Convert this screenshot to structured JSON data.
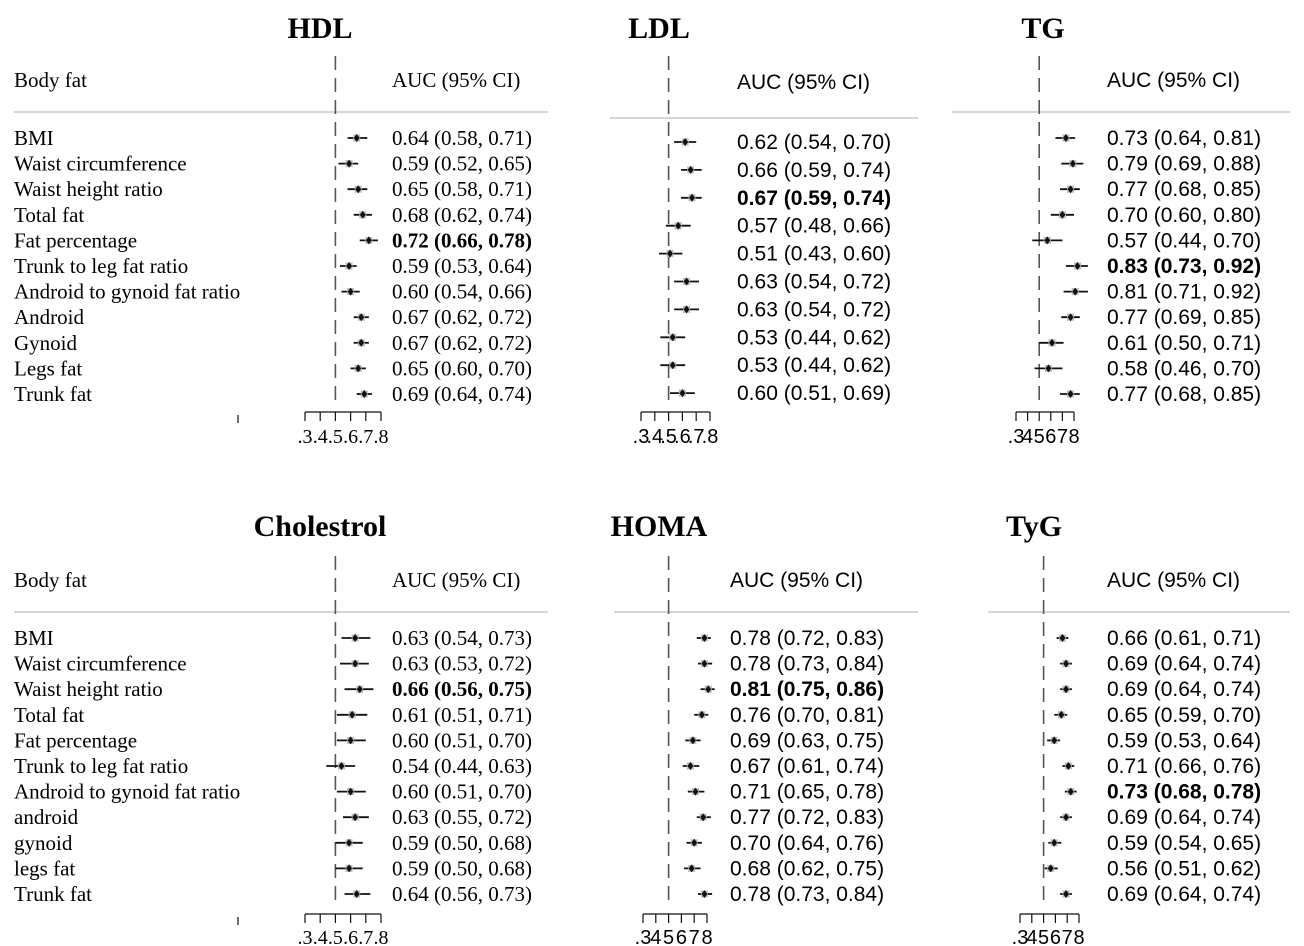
{
  "chart_data": [
    {
      "type": "forest",
      "title": "HDL",
      "label_header": "Body fat",
      "value_header": "AUC (95% CI)",
      "xticks": [
        ".3",
        ".4",
        ".5",
        ".6",
        ".7",
        ".8"
      ],
      "null_line": 0.5,
      "rows": [
        {
          "label": "BMI",
          "auc": 0.64,
          "lo": 0.58,
          "hi": 0.71,
          "text": "0.64 (0.58, 0.71)",
          "bold": false
        },
        {
          "label": "Waist circumference",
          "auc": 0.59,
          "lo": 0.52,
          "hi": 0.65,
          "text": "0.59 (0.52, 0.65)",
          "bold": false
        },
        {
          "label": "Waist height ratio",
          "auc": 0.65,
          "lo": 0.58,
          "hi": 0.71,
          "text": "0.65 (0.58, 0.71)",
          "bold": false
        },
        {
          "label": "Total fat",
          "auc": 0.68,
          "lo": 0.62,
          "hi": 0.74,
          "text": "0.68 (0.62, 0.74)",
          "bold": false
        },
        {
          "label": "Fat percentage",
          "auc": 0.72,
          "lo": 0.66,
          "hi": 0.78,
          "text": "0.72 (0.66, 0.78)",
          "bold": true
        },
        {
          "label": "Trunk to leg fat ratio",
          "auc": 0.59,
          "lo": 0.53,
          "hi": 0.64,
          "text": "0.59 (0.53, 0.64)",
          "bold": false
        },
        {
          "label": "Android to gynoid fat ratio",
          "auc": 0.6,
          "lo": 0.54,
          "hi": 0.66,
          "text": "0.60 (0.54, 0.66)",
          "bold": false
        },
        {
          "label": "Android",
          "auc": 0.67,
          "lo": 0.62,
          "hi": 0.72,
          "text": "0.67 (0.62, 0.72)",
          "bold": false
        },
        {
          "label": "Gynoid",
          "auc": 0.67,
          "lo": 0.62,
          "hi": 0.72,
          "text": "0.67 (0.62, 0.72)",
          "bold": false
        },
        {
          "label": "Legs fat",
          "auc": 0.65,
          "lo": 0.6,
          "hi": 0.7,
          "text": "0.65 (0.60, 0.70)",
          "bold": false
        },
        {
          "label": "Trunk fat",
          "auc": 0.69,
          "lo": 0.64,
          "hi": 0.74,
          "text": "0.69 (0.64, 0.74)",
          "bold": false
        }
      ]
    },
    {
      "type": "forest",
      "title": "LDL",
      "value_header": "AUC (95% CI)",
      "xticks": [
        ".3",
        ".4",
        ".5",
        ".6",
        ".7",
        ".8"
      ],
      "null_line": 0.5,
      "rows": [
        {
          "auc": 0.62,
          "lo": 0.54,
          "hi": 0.7,
          "text": "0.62 (0.54, 0.70)",
          "bold": false
        },
        {
          "auc": 0.66,
          "lo": 0.59,
          "hi": 0.74,
          "text": "0.66 (0.59, 0.74)",
          "bold": false
        },
        {
          "auc": 0.67,
          "lo": 0.59,
          "hi": 0.74,
          "text": "0.67 (0.59, 0.74)",
          "bold": true
        },
        {
          "auc": 0.57,
          "lo": 0.48,
          "hi": 0.66,
          "text": "0.57 (0.48, 0.66)",
          "bold": false
        },
        {
          "auc": 0.51,
          "lo": 0.43,
          "hi": 0.6,
          "text": "0.51 (0.43, 0.60)",
          "bold": false
        },
        {
          "auc": 0.63,
          "lo": 0.54,
          "hi": 0.72,
          "text": "0.63 (0.54, 0.72)",
          "bold": false
        },
        {
          "auc": 0.63,
          "lo": 0.54,
          "hi": 0.72,
          "text": "0.63 (0.54, 0.72)",
          "bold": false
        },
        {
          "auc": 0.53,
          "lo": 0.44,
          "hi": 0.62,
          "text": "0.53 (0.44, 0.62)",
          "bold": false
        },
        {
          "auc": 0.53,
          "lo": 0.44,
          "hi": 0.62,
          "text": "0.53 (0.44, 0.62)",
          "bold": false
        },
        {
          "auc": 0.6,
          "lo": 0.51,
          "hi": 0.69,
          "text": "0.60 (0.51, 0.69)",
          "bold": false
        }
      ]
    },
    {
      "type": "forest",
      "title": "TG",
      "value_header": "AUC (95% CI)",
      "xticks": [
        ".3",
        "4",
        "5",
        "6",
        "7",
        "8"
      ],
      "null_line": 0.5,
      "rows": [
        {
          "auc": 0.73,
          "lo": 0.64,
          "hi": 0.81,
          "text": "0.73 (0.64, 0.81)",
          "bold": false
        },
        {
          "auc": 0.79,
          "lo": 0.69,
          "hi": 0.88,
          "text": "0.79 (0.69, 0.88)",
          "bold": false
        },
        {
          "auc": 0.77,
          "lo": 0.68,
          "hi": 0.85,
          "text": "0.77 (0.68, 0.85)",
          "bold": false
        },
        {
          "auc": 0.7,
          "lo": 0.6,
          "hi": 0.8,
          "text": "0.70 (0.60, 0.80)",
          "bold": false
        },
        {
          "auc": 0.57,
          "lo": 0.44,
          "hi": 0.7,
          "text": "0.57 (0.44, 0.70)",
          "bold": false
        },
        {
          "auc": 0.83,
          "lo": 0.73,
          "hi": 0.92,
          "text": "0.83 (0.73, 0.92)",
          "bold": true
        },
        {
          "auc": 0.81,
          "lo": 0.71,
          "hi": 0.92,
          "text": "0.81 (0.71, 0.92)",
          "bold": false
        },
        {
          "auc": 0.77,
          "lo": 0.69,
          "hi": 0.85,
          "text": "0.77 (0.69, 0.85)",
          "bold": false
        },
        {
          "auc": 0.61,
          "lo": 0.5,
          "hi": 0.71,
          "text": "0.61 (0.50, 0.71)",
          "bold": false
        },
        {
          "auc": 0.58,
          "lo": 0.46,
          "hi": 0.7,
          "text": "0.58 (0.46, 0.70)",
          "bold": false
        },
        {
          "auc": 0.77,
          "lo": 0.68,
          "hi": 0.85,
          "text": "0.77 (0.68, 0.85)",
          "bold": false
        }
      ]
    },
    {
      "type": "forest",
      "title": "Cholestrol",
      "label_header": "Body fat",
      "value_header": "AUC (95% CI)",
      "xticks": [
        ".3",
        ".4",
        ".5",
        ".6",
        ".7",
        ".8"
      ],
      "null_line": 0.5,
      "rows": [
        {
          "label": "BMI",
          "auc": 0.63,
          "lo": 0.54,
          "hi": 0.73,
          "text": "0.63 (0.54, 0.73)",
          "bold": false
        },
        {
          "label": "Waist circumference",
          "auc": 0.63,
          "lo": 0.53,
          "hi": 0.72,
          "text": "0.63 (0.53, 0.72)",
          "bold": false
        },
        {
          "label": "Waist height ratio",
          "auc": 0.66,
          "lo": 0.56,
          "hi": 0.75,
          "text": "0.66 (0.56, 0.75)",
          "bold": true
        },
        {
          "label": "Total fat",
          "auc": 0.61,
          "lo": 0.51,
          "hi": 0.71,
          "text": "0.61 (0.51, 0.71)",
          "bold": false
        },
        {
          "label": "Fat percentage",
          "auc": 0.6,
          "lo": 0.51,
          "hi": 0.7,
          "text": "0.60 (0.51, 0.70)",
          "bold": false
        },
        {
          "label": "Trunk to leg fat ratio",
          "auc": 0.54,
          "lo": 0.44,
          "hi": 0.63,
          "text": "0.54 (0.44, 0.63)",
          "bold": false
        },
        {
          "label": "Android to gynoid fat ratio",
          "auc": 0.6,
          "lo": 0.51,
          "hi": 0.7,
          "text": "0.60 (0.51, 0.70)",
          "bold": false
        },
        {
          "label": "android",
          "auc": 0.63,
          "lo": 0.55,
          "hi": 0.72,
          "text": "0.63 (0.55, 0.72)",
          "bold": false
        },
        {
          "label": "gynoid",
          "auc": 0.59,
          "lo": 0.5,
          "hi": 0.68,
          "text": "0.59 (0.50, 0.68)",
          "bold": false
        },
        {
          "label": "legs fat",
          "auc": 0.59,
          "lo": 0.5,
          "hi": 0.68,
          "text": "0.59 (0.50, 0.68)",
          "bold": false
        },
        {
          "label": "Trunk fat",
          "auc": 0.64,
          "lo": 0.56,
          "hi": 0.73,
          "text": "0.64 (0.56, 0.73)",
          "bold": false
        }
      ]
    },
    {
      "type": "forest",
      "title": "HOMA",
      "value_header": "AUC (95% CI)",
      "xticks": [
        ".3",
        "4",
        "5",
        "6",
        "7",
        "8"
      ],
      "null_line": 0.5,
      "rows": [
        {
          "auc": 0.78,
          "lo": 0.72,
          "hi": 0.83,
          "text": "0.78 (0.72, 0.83)",
          "bold": false
        },
        {
          "auc": 0.78,
          "lo": 0.73,
          "hi": 0.84,
          "text": "0.78 (0.73, 0.84)",
          "bold": false
        },
        {
          "auc": 0.81,
          "lo": 0.75,
          "hi": 0.86,
          "text": "0.81 (0.75, 0.86)",
          "bold": true
        },
        {
          "auc": 0.76,
          "lo": 0.7,
          "hi": 0.81,
          "text": "0.76 (0.70, 0.81)",
          "bold": false
        },
        {
          "auc": 0.69,
          "lo": 0.63,
          "hi": 0.75,
          "text": "0.69 (0.63, 0.75)",
          "bold": false
        },
        {
          "auc": 0.67,
          "lo": 0.61,
          "hi": 0.74,
          "text": "0.67 (0.61, 0.74)",
          "bold": false
        },
        {
          "auc": 0.71,
          "lo": 0.65,
          "hi": 0.78,
          "text": "0.71 (0.65, 0.78)",
          "bold": false
        },
        {
          "auc": 0.77,
          "lo": 0.72,
          "hi": 0.83,
          "text": "0.77 (0.72, 0.83)",
          "bold": false
        },
        {
          "auc": 0.7,
          "lo": 0.64,
          "hi": 0.76,
          "text": "0.70 (0.64, 0.76)",
          "bold": false
        },
        {
          "auc": 0.68,
          "lo": 0.62,
          "hi": 0.75,
          "text": "0.68 (0.62, 0.75)",
          "bold": false
        },
        {
          "auc": 0.78,
          "lo": 0.73,
          "hi": 0.84,
          "text": "0.78 (0.73, 0.84)",
          "bold": false
        }
      ]
    },
    {
      "type": "forest",
      "title": "TyG",
      "value_header": "AUC (95% CI)",
      "xticks": [
        ".3",
        "4",
        "5",
        "6",
        "7",
        "8"
      ],
      "null_line": 0.5,
      "rows": [
        {
          "auc": 0.66,
          "lo": 0.61,
          "hi": 0.71,
          "text": "0.66 (0.61, 0.71)",
          "bold": false
        },
        {
          "auc": 0.69,
          "lo": 0.64,
          "hi": 0.74,
          "text": "0.69 (0.64, 0.74)",
          "bold": false
        },
        {
          "auc": 0.69,
          "lo": 0.64,
          "hi": 0.74,
          "text": "0.69 (0.64, 0.74)",
          "bold": false
        },
        {
          "auc": 0.65,
          "lo": 0.59,
          "hi": 0.7,
          "text": "0.65 (0.59, 0.70)",
          "bold": false
        },
        {
          "auc": 0.59,
          "lo": 0.53,
          "hi": 0.64,
          "text": "0.59 (0.53, 0.64)",
          "bold": false
        },
        {
          "auc": 0.71,
          "lo": 0.66,
          "hi": 0.76,
          "text": "0.71 (0.66, 0.76)",
          "bold": false
        },
        {
          "auc": 0.73,
          "lo": 0.68,
          "hi": 0.78,
          "text": "0.73 (0.68, 0.78)",
          "bold": true
        },
        {
          "auc": 0.69,
          "lo": 0.64,
          "hi": 0.74,
          "text": "0.69 (0.64, 0.74)",
          "bold": false
        },
        {
          "auc": 0.59,
          "lo": 0.54,
          "hi": 0.65,
          "text": "0.59 (0.54, 0.65)",
          "bold": false
        },
        {
          "auc": 0.56,
          "lo": 0.51,
          "hi": 0.62,
          "text": "0.56 (0.51, 0.62)",
          "bold": false
        },
        {
          "auc": 0.69,
          "lo": 0.64,
          "hi": 0.74,
          "text": "0.69 (0.64, 0.74)",
          "bold": false
        }
      ]
    }
  ]
}
